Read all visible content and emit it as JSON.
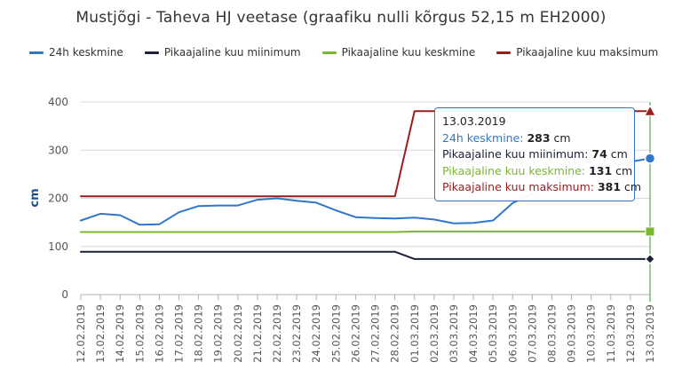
{
  "chart_data": {
    "type": "line",
    "title": "Mustjõgi - Taheva HJ veetase (graafiku nulli kõrgus 52,15 m EH2000)",
    "ylabel": "cm",
    "xlabel": "",
    "ylim": [
      0,
      400
    ],
    "yticks": [
      "0",
      "100",
      "200",
      "300",
      "400"
    ],
    "categories": [
      "12.02.2019",
      "13.02.2019",
      "14.02.2019",
      "15.02.2019",
      "16.02.2019",
      "17.02.2019",
      "18.02.2019",
      "19.02.2019",
      "20.02.2019",
      "21.02.2019",
      "22.02.2019",
      "23.02.2019",
      "24.02.2019",
      "25.02.2019",
      "26.02.2019",
      "27.02.2019",
      "28.02.2019",
      "01.03.2019",
      "02.03.2019",
      "03.03.2019",
      "04.03.2019",
      "05.03.2019",
      "06.03.2019",
      "07.03.2019",
      "08.03.2019",
      "09.03.2019",
      "10.03.2019",
      "11.03.2019",
      "12.03.2019",
      "13.03.2019"
    ],
    "grid": true,
    "legend_position": "top-left",
    "series": [
      {
        "name": "24h keskmine",
        "color": "#3077c9",
        "values": [
          154,
          168,
          165,
          145,
          146,
          171,
          184,
          185,
          185,
          197,
          200,
          195,
          191,
          175,
          161,
          159,
          158,
          160,
          156,
          148,
          149,
          154,
          190,
          210,
          230,
          245,
          258,
          268,
          276,
          283
        ]
      },
      {
        "name": "Pikaajaline kuu miinimum",
        "color": "#1b2137",
        "values": [
          89,
          89,
          89,
          89,
          89,
          89,
          89,
          89,
          89,
          89,
          89,
          89,
          89,
          89,
          89,
          89,
          89,
          74,
          74,
          74,
          74,
          74,
          74,
          74,
          74,
          74,
          74,
          74,
          74,
          74
        ]
      },
      {
        "name": "Pikaajaline kuu keskmine",
        "color": "#7cb733",
        "values": [
          130,
          130,
          130,
          130,
          130,
          130,
          130,
          130,
          130,
          130,
          130,
          130,
          130,
          130,
          130,
          130,
          130,
          131,
          131,
          131,
          131,
          131,
          131,
          131,
          131,
          131,
          131,
          131,
          131,
          131
        ]
      },
      {
        "name": "Pikaajaline kuu maksimum",
        "color": "#9b1c1c",
        "values": [
          204,
          204,
          204,
          204,
          204,
          204,
          204,
          204,
          204,
          204,
          204,
          204,
          204,
          204,
          204,
          204,
          204,
          381,
          381,
          381,
          381,
          381,
          381,
          381,
          381,
          381,
          381,
          381,
          381,
          381
        ]
      }
    ],
    "tooltip": {
      "date": "13.03.2019",
      "rows": [
        {
          "label": "24h keskmine: ",
          "value": "283",
          "unit": " cm",
          "color": "#3077c9"
        },
        {
          "label": "Pikaajaline kuu miinimum: ",
          "value": "74",
          "unit": " cm",
          "color": "#1b2137"
        },
        {
          "label": "Pikaajaline kuu keskmine: ",
          "value": "131",
          "unit": " cm",
          "color": "#7cb733"
        },
        {
          "label": "Pikaajaline kuu maksimum: ",
          "value": "381",
          "unit": " cm",
          "color": "#9b1c1c"
        }
      ]
    },
    "crosshair_color": "#2e9e2e",
    "grid_color": "#d8d8d8"
  }
}
